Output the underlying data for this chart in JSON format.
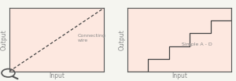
{
  "bg_color": "#f5f5f0",
  "plot_bg_color": "#fde8e0",
  "grid_color": "#e8a090",
  "axis_color": "#555555",
  "line_color": "#444444",
  "label_color": "#888888",
  "left_title": "Output",
  "left_xlabel": "Input",
  "left_annotation": "Connecting\nwire",
  "right_title": "Output",
  "right_xlabel": "Input",
  "right_annotation": "Simple A - D",
  "font_size": 5.5,
  "annotation_font_size": 4.5
}
